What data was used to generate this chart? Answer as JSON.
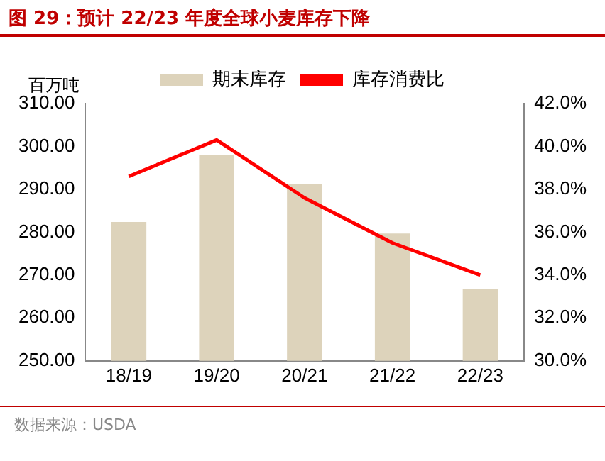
{
  "chart_data": {
    "type": "bar",
    "title": "图 29：预计 22/23 年度全球小麦库存下降",
    "ylabel": "百万吨",
    "annotations": [
      "数据来源：USDA"
    ],
    "categories": [
      "18/19",
      "19/20",
      "20/21",
      "21/22",
      "22/23"
    ],
    "series": [
      {
        "name": "期末库存",
        "color": "#ddd3bb",
        "values": [
          282.4,
          298,
          291.2,
          279.7,
          266.8
        ]
      },
      {
        "name": "库存消费比",
        "type": "line",
        "axis": "y2",
        "color": "#ff0000",
        "values": [
          38.6,
          40.3,
          37.6,
          35.5,
          34.0
        ]
      }
    ],
    "ylim": [
      250,
      310
    ],
    "yticks": [
      {
        "value": 250,
        "label": "250.00"
      },
      {
        "value": 260,
        "label": "260.00"
      },
      {
        "value": 270,
        "label": "270.00"
      },
      {
        "value": 280,
        "label": "280.00"
      },
      {
        "value": 290,
        "label": "290.00"
      },
      {
        "value": 300,
        "label": "300.00"
      },
      {
        "value": 310,
        "label": "310.00"
      }
    ],
    "y2lim": [
      30,
      42
    ],
    "y2ticks": [
      {
        "value": 30,
        "label": "30.0%"
      },
      {
        "value": 32,
        "label": "32.0%"
      },
      {
        "value": 34,
        "label": "34.0%"
      },
      {
        "value": 36,
        "label": "36.0%"
      },
      {
        "value": 38,
        "label": "38.0%"
      },
      {
        "value": 40,
        "label": "40.0%"
      },
      {
        "value": 42,
        "label": "42.0%"
      }
    ],
    "grid": false,
    "legend": "top",
    "marker": "none"
  }
}
